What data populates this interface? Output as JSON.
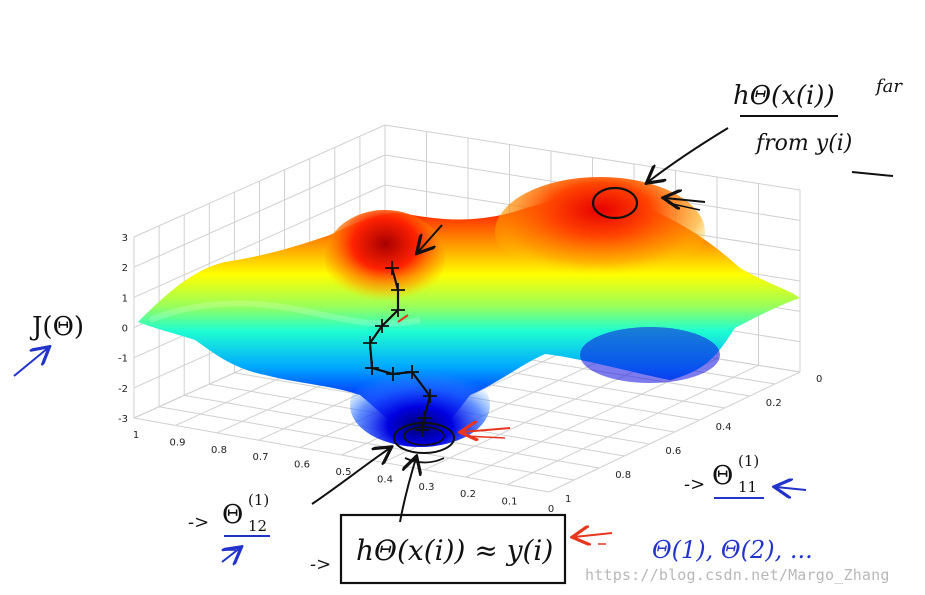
{
  "chart_data": {
    "type": "surface",
    "title": "",
    "zlabel": "J(Θ)",
    "zlim": [
      -3,
      3
    ],
    "z_ticks": [
      "3",
      "2",
      "1",
      "0",
      "-1",
      "-2",
      "-3"
    ],
    "x_param": "Θ(1)12",
    "x_ticks": [
      "1",
      "0.9",
      "0.8",
      "0.7",
      "0.6",
      "0.5",
      "0.4",
      "0.3",
      "0.2",
      "0.1",
      "0"
    ],
    "y_param": "Θ(1)11",
    "y_ticks": [
      "0",
      "0.2",
      "0.4",
      "0.6",
      "0.8",
      "1"
    ],
    "grid": true,
    "colormap": "jet",
    "descent_steps": 10
  },
  "annotations": {
    "j_theta": "J(Θ)",
    "theta12_main": "Θ",
    "theta12_sup": "(1)",
    "theta12_sub": "12",
    "theta11_main": "Θ",
    "theta11_sup": "(1)",
    "theta11_sub": "11",
    "top_fraction_num": "hΘ(x(i))",
    "top_fraction_suffix": "far",
    "top_fraction_den": "from y(i)",
    "box_text": "hΘ(x(i)) ≈ y(i)",
    "params_list": "Θ(1), Θ(2), ...",
    "arrow_glyph": "->"
  },
  "watermark": "https://blog.csdn.net/Margo_Zhang",
  "colors": {
    "ink": "#111111",
    "blue_ink": "#2233cc",
    "red_ink": "#e8351e",
    "grid": "#d0d0d0"
  }
}
